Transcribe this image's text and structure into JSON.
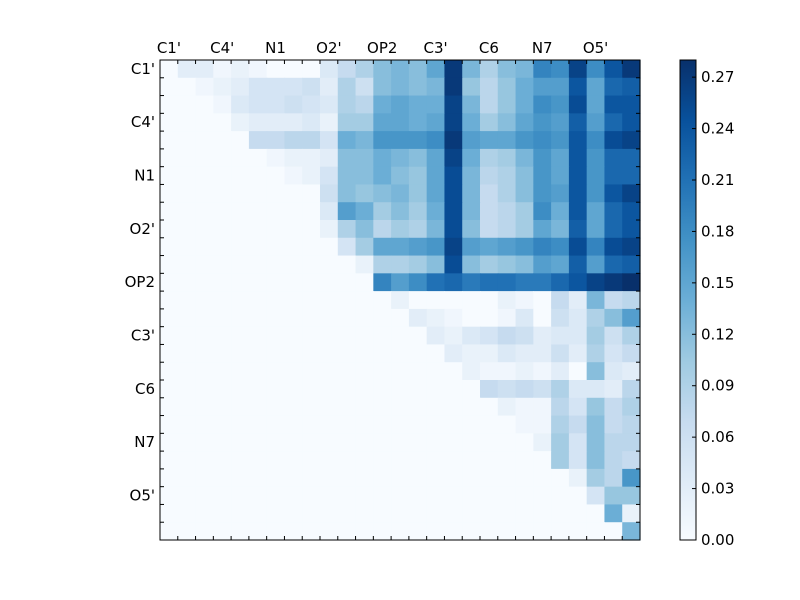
{
  "chart_data": {
    "type": "heatmap",
    "n": 27,
    "x_tick_labels": [
      "C1'",
      "C4'",
      "N1",
      "O2'",
      "OP2",
      "C3'",
      "C6",
      "N7",
      "O5'"
    ],
    "y_tick_labels": [
      "C1'",
      "C4'",
      "N1",
      "O2'",
      "OP2",
      "C3'",
      "C6",
      "N7",
      "O5'"
    ],
    "tick_positions": [
      0,
      3,
      6,
      9,
      12,
      15,
      18,
      21,
      24
    ],
    "colormap": "Blues",
    "colors": {
      "cmap_low": "#f7fbff",
      "cmap_high": "#08306b"
    },
    "colorbar": {
      "vmin": 0.0,
      "vmax": 0.28,
      "tick_labels": [
        "0.00",
        "0.03",
        "0.06",
        "0.09",
        "0.12",
        "0.15",
        "0.18",
        "0.21",
        "0.24",
        "0.27"
      ]
    },
    "rows": [
      [
        0,
        0.03,
        0.03,
        0.01,
        0.02,
        0.01,
        0,
        0,
        0,
        0.04,
        0.07,
        0.09,
        0.12,
        0.13,
        0.12,
        0.15,
        0.27,
        0.13,
        0.09,
        0.12,
        0.13,
        0.19,
        0.18,
        0.26,
        0.18,
        0.24,
        0.27
      ],
      [
        0,
        0,
        0.01,
        0.02,
        0.03,
        0.05,
        0.05,
        0.05,
        0.06,
        0.03,
        0.09,
        0.06,
        0.12,
        0.13,
        0.12,
        0.13,
        0.27,
        0.11,
        0.08,
        0.11,
        0.14,
        0.16,
        0.16,
        0.24,
        0.15,
        0.22,
        0.23
      ],
      [
        0,
        0,
        0,
        0.01,
        0.04,
        0.05,
        0.05,
        0.06,
        0.05,
        0.04,
        0.09,
        0.08,
        0.14,
        0.15,
        0.14,
        0.14,
        0.26,
        0.13,
        0.08,
        0.11,
        0.14,
        0.18,
        0.17,
        0.25,
        0.15,
        0.24,
        0.24
      ],
      [
        0,
        0,
        0,
        0,
        0.02,
        0.03,
        0.03,
        0.03,
        0.04,
        0.02,
        0.1,
        0.1,
        0.15,
        0.15,
        0.14,
        0.15,
        0.26,
        0.14,
        0.1,
        0.12,
        0.15,
        0.17,
        0.16,
        0.23,
        0.16,
        0.22,
        0.24
      ],
      [
        0,
        0,
        0,
        0,
        0,
        0.07,
        0.07,
        0.08,
        0.08,
        0.05,
        0.14,
        0.13,
        0.17,
        0.17,
        0.17,
        0.18,
        0.27,
        0.16,
        0.15,
        0.15,
        0.17,
        0.18,
        0.17,
        0.24,
        0.18,
        0.25,
        0.26
      ],
      [
        0,
        0,
        0,
        0,
        0,
        0,
        0.01,
        0.02,
        0.02,
        0.03,
        0.12,
        0.12,
        0.14,
        0.13,
        0.12,
        0.15,
        0.26,
        0.14,
        0.09,
        0.1,
        0.13,
        0.17,
        0.15,
        0.24,
        0.17,
        0.22,
        0.22
      ],
      [
        0,
        0,
        0,
        0,
        0,
        0,
        0,
        0.01,
        0.02,
        0.05,
        0.12,
        0.12,
        0.14,
        0.12,
        0.11,
        0.15,
        0.25,
        0.13,
        0.08,
        0.09,
        0.12,
        0.17,
        0.15,
        0.24,
        0.17,
        0.22,
        0.22
      ],
      [
        0,
        0,
        0,
        0,
        0,
        0,
        0,
        0,
        0,
        0.06,
        0.12,
        0.11,
        0.12,
        0.13,
        0.11,
        0.15,
        0.25,
        0.13,
        0.07,
        0.09,
        0.12,
        0.17,
        0.16,
        0.24,
        0.17,
        0.24,
        0.26
      ],
      [
        0,
        0,
        0,
        0,
        0,
        0,
        0,
        0,
        0,
        0.04,
        0.16,
        0.14,
        0.1,
        0.12,
        0.1,
        0.14,
        0.25,
        0.13,
        0.07,
        0.08,
        0.1,
        0.18,
        0.14,
        0.24,
        0.15,
        0.22,
        0.24
      ],
      [
        0,
        0,
        0,
        0,
        0,
        0,
        0,
        0,
        0,
        0.02,
        0.09,
        0.12,
        0.08,
        0.1,
        0.09,
        0.13,
        0.25,
        0.12,
        0.07,
        0.08,
        0.1,
        0.15,
        0.13,
        0.23,
        0.15,
        0.22,
        0.24
      ],
      [
        0,
        0,
        0,
        0,
        0,
        0,
        0,
        0,
        0,
        0,
        0.05,
        0.1,
        0.15,
        0.15,
        0.16,
        0.17,
        0.26,
        0.16,
        0.15,
        0.16,
        0.17,
        0.19,
        0.18,
        0.25,
        0.19,
        0.25,
        0.26
      ],
      [
        0,
        0,
        0,
        0,
        0,
        0,
        0,
        0,
        0,
        0,
        0,
        0.02,
        0.09,
        0.09,
        0.1,
        0.12,
        0.25,
        0.12,
        0.1,
        0.11,
        0.12,
        0.16,
        0.15,
        0.23,
        0.16,
        0.22,
        0.23
      ],
      [
        0,
        0,
        0,
        0,
        0,
        0,
        0,
        0,
        0,
        0,
        0,
        0,
        0.19,
        0.16,
        0.18,
        0.21,
        0.22,
        0.2,
        0.21,
        0.21,
        0.2,
        0.2,
        0.22,
        0.24,
        0.26,
        0.27,
        0.28
      ],
      [
        0,
        0,
        0,
        0,
        0,
        0,
        0,
        0,
        0,
        0,
        0,
        0,
        0,
        0.02,
        0,
        0,
        0,
        0,
        0,
        0.02,
        0.01,
        0,
        0.07,
        0.03,
        0.13,
        0.07,
        0.08
      ],
      [
        0,
        0,
        0,
        0,
        0,
        0,
        0,
        0,
        0,
        0,
        0,
        0,
        0,
        0,
        0.03,
        0.02,
        0.01,
        0,
        0,
        0.01,
        0.04,
        0,
        0.06,
        0.04,
        0.09,
        0.12,
        0.16
      ],
      [
        0,
        0,
        0,
        0,
        0,
        0,
        0,
        0,
        0,
        0,
        0,
        0,
        0,
        0,
        0,
        0.03,
        0.02,
        0.04,
        0.05,
        0.07,
        0.06,
        0.03,
        0.04,
        0.04,
        0.1,
        0.06,
        0.09
      ],
      [
        0,
        0,
        0,
        0,
        0,
        0,
        0,
        0,
        0,
        0,
        0,
        0,
        0,
        0,
        0,
        0,
        0.03,
        0.02,
        0.02,
        0.04,
        0.03,
        0.03,
        0.06,
        0.03,
        0.09,
        0.05,
        0.07
      ],
      [
        0,
        0,
        0,
        0,
        0,
        0,
        0,
        0,
        0,
        0,
        0,
        0,
        0,
        0,
        0,
        0,
        0,
        0.02,
        0.01,
        0.01,
        0.02,
        0.01,
        0.03,
        0,
        0.12,
        0.04,
        0.03
      ],
      [
        0,
        0,
        0,
        0,
        0,
        0,
        0,
        0,
        0,
        0,
        0,
        0,
        0,
        0,
        0,
        0,
        0,
        0,
        0.07,
        0.06,
        0.07,
        0.06,
        0.09,
        0.04,
        0.04,
        0.03,
        0.08
      ],
      [
        0,
        0,
        0,
        0,
        0,
        0,
        0,
        0,
        0,
        0,
        0,
        0,
        0,
        0,
        0,
        0,
        0,
        0,
        0,
        0.02,
        0.01,
        0.01,
        0.08,
        0.05,
        0.11,
        0.07,
        0.09
      ],
      [
        0,
        0,
        0,
        0,
        0,
        0,
        0,
        0,
        0,
        0,
        0,
        0,
        0,
        0,
        0,
        0,
        0,
        0,
        0,
        0,
        0.01,
        0.01,
        0.09,
        0.07,
        0.12,
        0.07,
        0.08
      ],
      [
        0,
        0,
        0,
        0,
        0,
        0,
        0,
        0,
        0,
        0,
        0,
        0,
        0,
        0,
        0,
        0,
        0,
        0,
        0,
        0,
        0,
        0.02,
        0.1,
        0.05,
        0.12,
        0.08,
        0.08
      ],
      [
        0,
        0,
        0,
        0,
        0,
        0,
        0,
        0,
        0,
        0,
        0,
        0,
        0,
        0,
        0,
        0,
        0,
        0,
        0,
        0,
        0,
        0,
        0.1,
        0.05,
        0.12,
        0.08,
        0.07
      ],
      [
        0,
        0,
        0,
        0,
        0,
        0,
        0,
        0,
        0,
        0,
        0,
        0,
        0,
        0,
        0,
        0,
        0,
        0,
        0,
        0,
        0,
        0,
        0,
        0.02,
        0.1,
        0.08,
        0.17
      ],
      [
        0,
        0,
        0,
        0,
        0,
        0,
        0,
        0,
        0,
        0,
        0,
        0,
        0,
        0,
        0,
        0,
        0,
        0,
        0,
        0,
        0,
        0,
        0,
        0,
        0.05,
        0.11,
        0.11
      ],
      [
        0,
        0,
        0,
        0,
        0,
        0,
        0,
        0,
        0,
        0,
        0,
        0,
        0,
        0,
        0,
        0,
        0,
        0,
        0,
        0,
        0,
        0,
        0,
        0,
        0,
        0.14,
        0.02
      ],
      [
        0,
        0,
        0,
        0,
        0,
        0,
        0,
        0,
        0,
        0,
        0,
        0,
        0,
        0,
        0,
        0,
        0,
        0,
        0,
        0,
        0,
        0,
        0,
        0,
        0,
        0,
        0.13
      ]
    ]
  }
}
